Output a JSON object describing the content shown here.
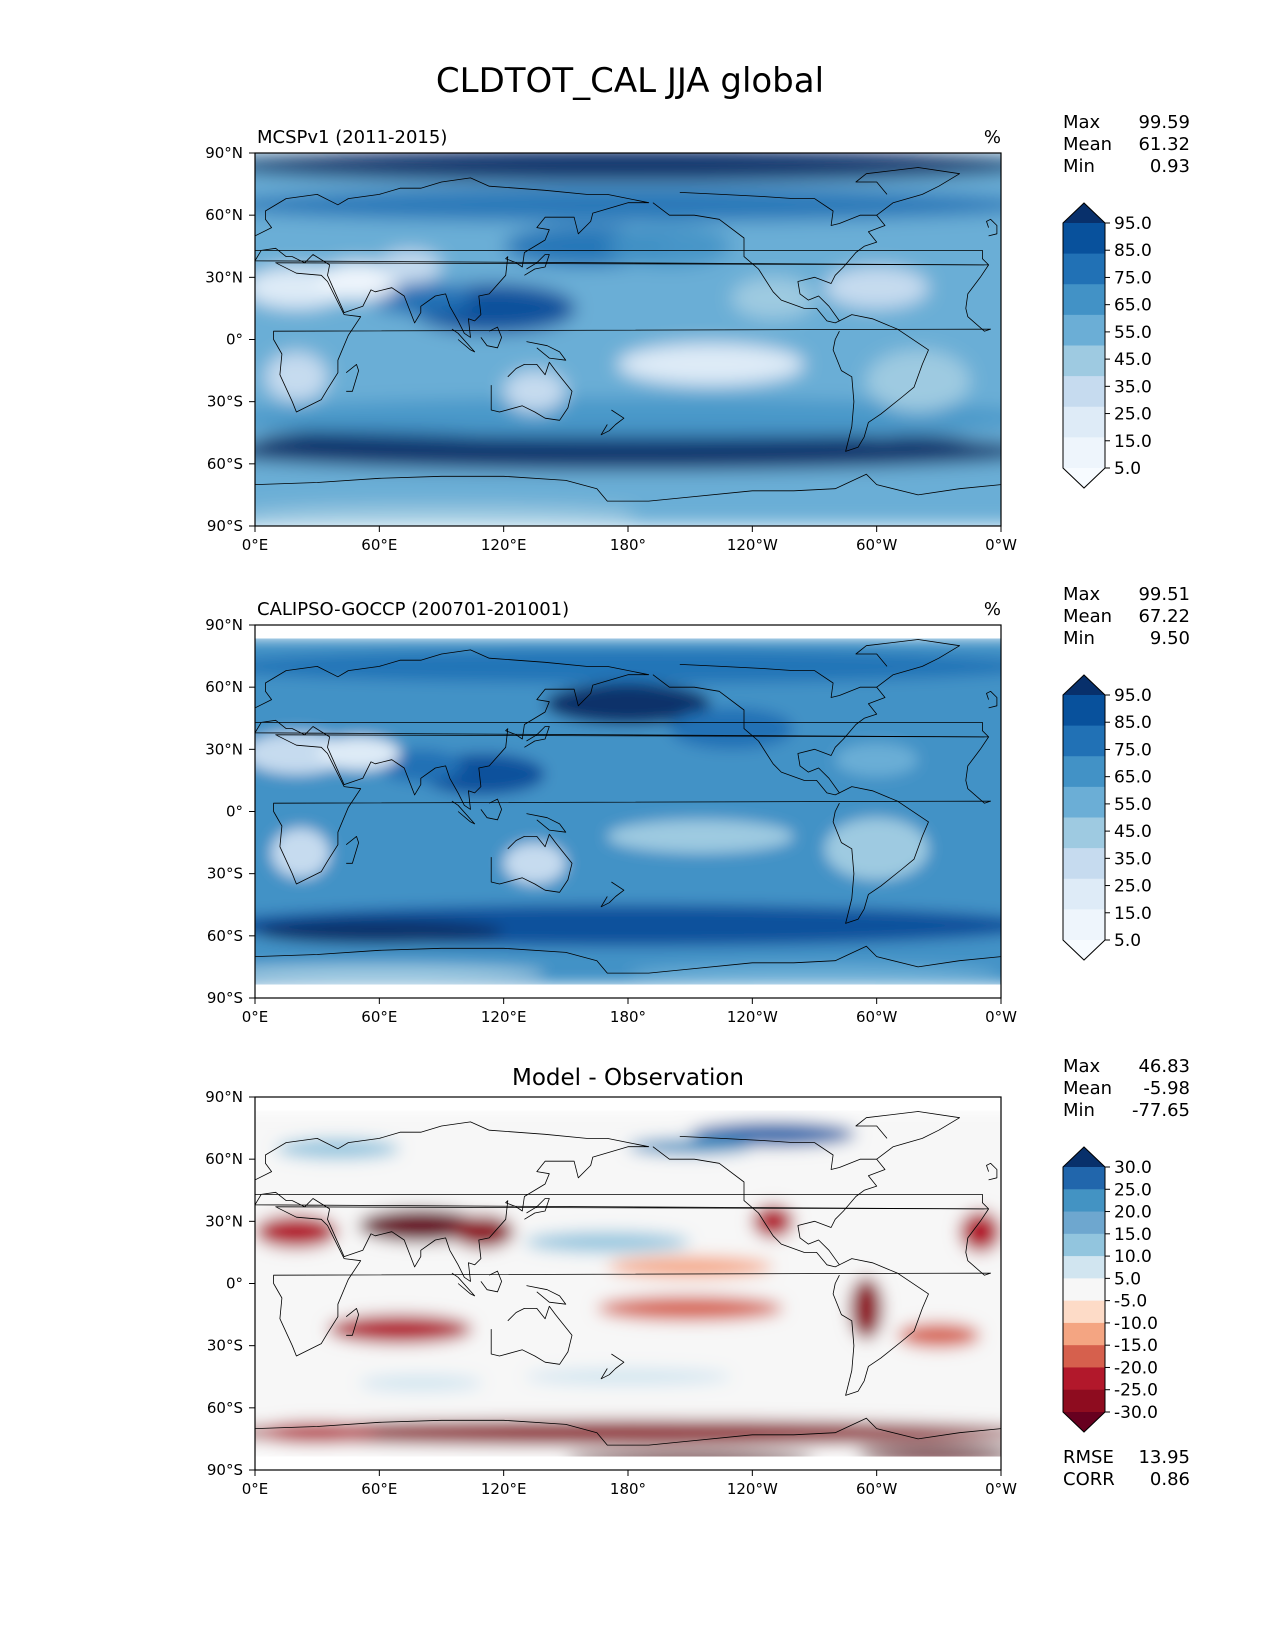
{
  "figure": {
    "title": "CLDTOT_CAL JJA global"
  },
  "chart_data": [
    {
      "type": "heatmap",
      "title": "MCSPv1 (2011-2015)",
      "units": "%",
      "x_ticks": [
        "0°E",
        "60°E",
        "120°E",
        "180°",
        "120°W",
        "60°W",
        "0°W"
      ],
      "y_ticks": [
        "90°N",
        "60°N",
        "30°N",
        "0°",
        "30°S",
        "60°S",
        "90°S"
      ],
      "xlim": [
        0,
        360
      ],
      "ylim": [
        -90,
        90
      ],
      "stats": [
        {
          "label": "Max",
          "value": "99.59"
        },
        {
          "label": "Mean",
          "value": "61.32"
        },
        {
          "label": "Min",
          "value": "0.93"
        }
      ],
      "colorbar": {
        "extend": "both",
        "tick_labels": [
          "95.0",
          "85.0",
          "75.0",
          "65.0",
          "55.0",
          "45.0",
          "35.0",
          "25.0",
          "15.0",
          "5.0"
        ],
        "colors": [
          "#08306b",
          "#08519c",
          "#2171b5",
          "#4292c6",
          "#6baed6",
          "#9ecae1",
          "#c6dbef",
          "#deebf7",
          "#eef5fc",
          "#f7fbff"
        ]
      }
    },
    {
      "type": "heatmap",
      "title": "CALIPSO-GOCCP (200701-201001)",
      "units": "%",
      "x_ticks": [
        "0°E",
        "60°E",
        "120°E",
        "180°",
        "120°W",
        "60°W",
        "0°W"
      ],
      "y_ticks": [
        "90°N",
        "60°N",
        "30°N",
        "0°",
        "30°S",
        "60°S",
        "90°S"
      ],
      "xlim": [
        0,
        360
      ],
      "ylim": [
        -90,
        90
      ],
      "stats": [
        {
          "label": "Max",
          "value": "99.51"
        },
        {
          "label": "Mean",
          "value": "67.22"
        },
        {
          "label": "Min",
          "value": "9.50"
        }
      ],
      "colorbar": {
        "extend": "both",
        "tick_labels": [
          "95.0",
          "85.0",
          "75.0",
          "65.0",
          "55.0",
          "45.0",
          "35.0",
          "25.0",
          "15.0",
          "5.0"
        ],
        "colors": [
          "#08306b",
          "#08519c",
          "#2171b5",
          "#4292c6",
          "#6baed6",
          "#9ecae1",
          "#c6dbef",
          "#deebf7",
          "#eef5fc",
          "#f7fbff"
        ]
      }
    },
    {
      "type": "heatmap",
      "title": "Model - Observation",
      "x_ticks": [
        "0°E",
        "60°E",
        "120°E",
        "180°",
        "120°W",
        "60°W",
        "0°W"
      ],
      "y_ticks": [
        "90°N",
        "60°N",
        "30°N",
        "0°",
        "30°S",
        "60°S",
        "90°S"
      ],
      "xlim": [
        0,
        360
      ],
      "ylim": [
        -90,
        90
      ],
      "stats": [
        {
          "label": "Max",
          "value": "46.83"
        },
        {
          "label": "Mean",
          "value": "-5.98"
        },
        {
          "label": "Min",
          "value": "-77.65"
        }
      ],
      "extra_stats": [
        {
          "label": "RMSE",
          "value": "13.95"
        },
        {
          "label": "CORR",
          "value": "0.86"
        }
      ],
      "colorbar": {
        "extend": "both",
        "tick_labels": [
          "30.0",
          "25.0",
          "20.0",
          "15.0",
          "10.0",
          "5.0",
          "-5.0",
          "-10.0",
          "-15.0",
          "-20.0",
          "-25.0",
          "-30.0"
        ],
        "colors": [
          "#08306b",
          "#2166ac",
          "#4393c3",
          "#6ea7cf",
          "#92c5de",
          "#d1e5f0",
          "#f7f7f7",
          "#fddbc7",
          "#f4a582",
          "#d6604d",
          "#b2182b",
          "#8e0c1f",
          "#67001f"
        ]
      }
    }
  ]
}
